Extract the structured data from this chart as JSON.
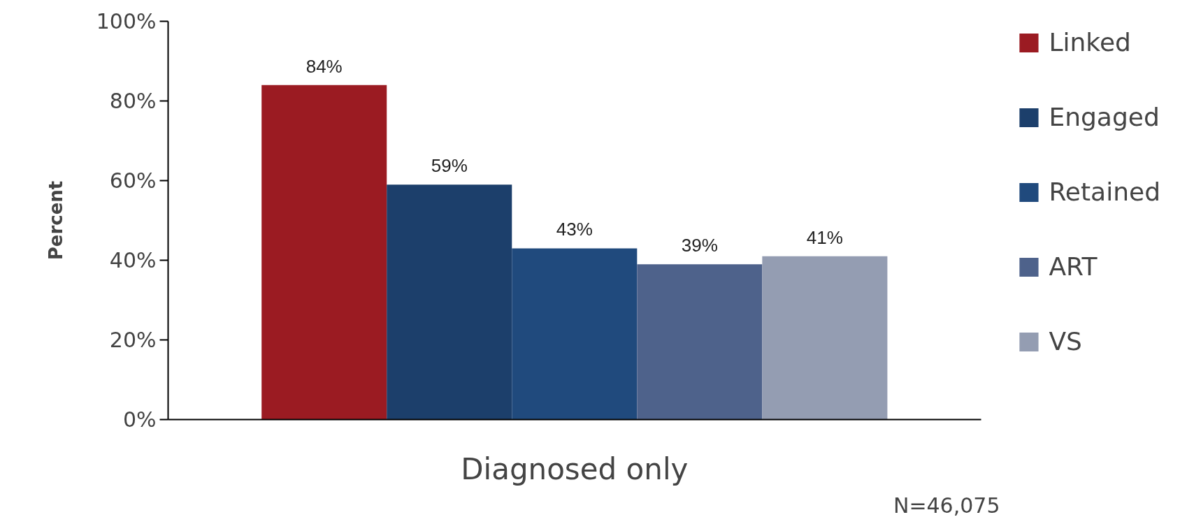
{
  "chart_data": {
    "type": "bar",
    "categories": [
      "Diagnosed only"
    ],
    "ylabel": "Percent",
    "series": [
      {
        "name": "Linked",
        "color": "#9b1b22",
        "values": [
          84
        ],
        "value_labels": [
          "84%"
        ]
      },
      {
        "name": "Engaged",
        "color": "#1c3f6b",
        "values": [
          59
        ],
        "value_labels": [
          "59%"
        ]
      },
      {
        "name": "Retained",
        "color": "#204a7d",
        "values": [
          43
        ],
        "value_labels": [
          "43%"
        ]
      },
      {
        "name": "ART",
        "color": "#4e628b",
        "values": [
          39
        ],
        "value_labels": [
          "39%"
        ]
      },
      {
        "name": "VS",
        "color": "#949db2",
        "values": [
          41
        ],
        "value_labels": [
          "41%"
        ]
      }
    ],
    "ylim": [
      0,
      100
    ],
    "yticks": [
      {
        "value": 0,
        "label": "0%"
      },
      {
        "value": 20,
        "label": "20%"
      },
      {
        "value": 40,
        "label": "40%"
      },
      {
        "value": 60,
        "label": "60%"
      },
      {
        "value": 80,
        "label": "80%"
      },
      {
        "value": 100,
        "label": "100%"
      }
    ],
    "legend": "right",
    "grid": false,
    "annotations": [
      "N=46,075"
    ]
  }
}
